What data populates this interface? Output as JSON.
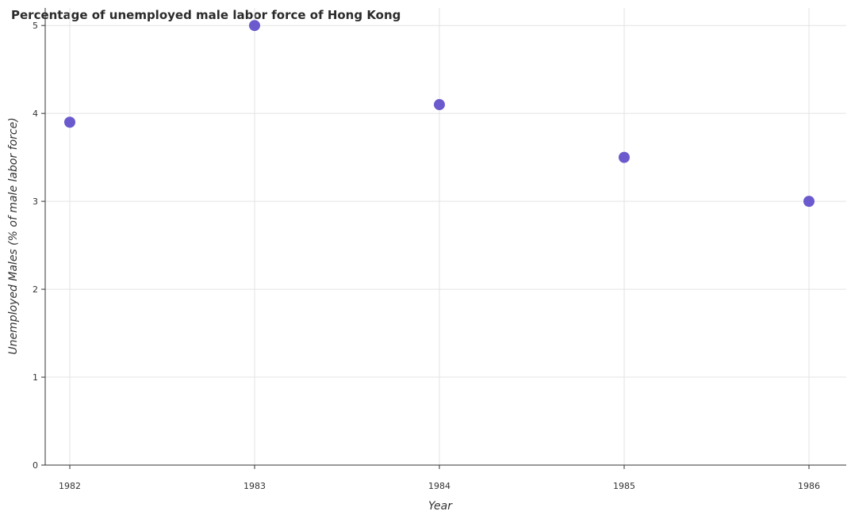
{
  "chart_data": {
    "type": "scatter",
    "title": "Percentage of unemployed male labor force of Hong Kong",
    "xlabel": "Year",
    "ylabel": "Unemployed Males (% of male labor force)",
    "categories": [
      "1982",
      "1983",
      "1984",
      "1985",
      "1986"
    ],
    "values": [
      3.9,
      5.0,
      4.1,
      3.5,
      3.0
    ],
    "yticks": [
      "0",
      "1",
      "2",
      "3",
      "4",
      "5"
    ],
    "ylim": [
      0,
      5.2
    ],
    "grid": true,
    "marker_color": "#6a5acd"
  }
}
